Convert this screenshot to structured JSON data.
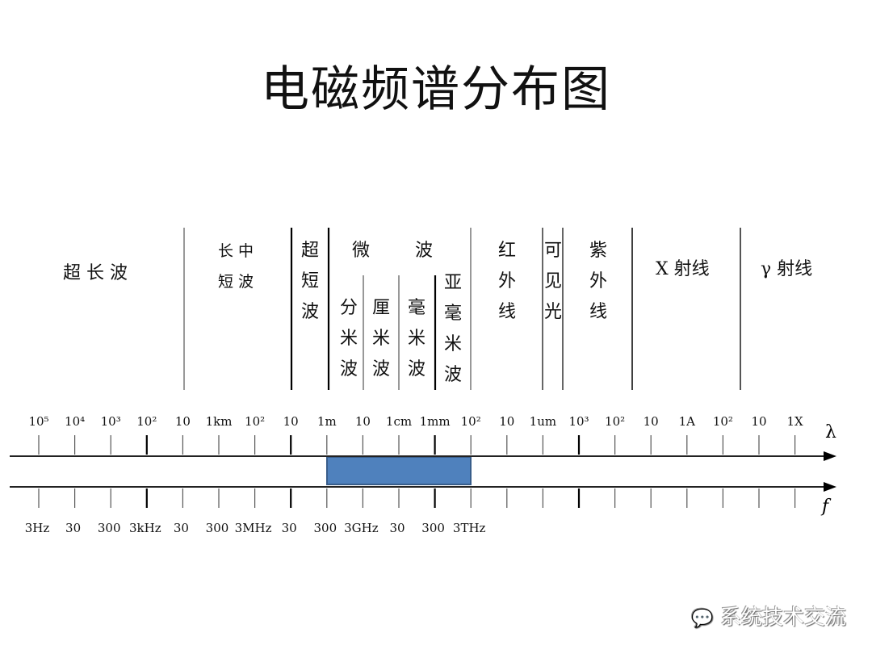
{
  "title": "电磁频谱分布图",
  "bands": [
    {
      "label": "超 长 波"
    },
    {
      "label": "长 中\n短 波"
    },
    {
      "label": "超短波"
    },
    {
      "label": "微        波"
    },
    {
      "label": "分米波"
    },
    {
      "label": "厘米波"
    },
    {
      "label": "毫米波"
    },
    {
      "label": "亚毫米波"
    },
    {
      "label": "红外线"
    },
    {
      "label": "可见光"
    },
    {
      "label": "紫外线"
    },
    {
      "label": "X 射线"
    },
    {
      "label": "γ 射线"
    }
  ],
  "wavelength_axis": {
    "symbol": "λ",
    "ticks": [
      "10⁵",
      "10⁴",
      "10³",
      "10²",
      "10",
      "1km",
      "10²",
      "10",
      "1m",
      "10",
      "1cm",
      "1mm",
      "10²",
      "10",
      "1um",
      "10³",
      "10²",
      "10",
      "1A",
      "10²",
      "10",
      "1X"
    ]
  },
  "frequency_axis": {
    "symbol": "f",
    "ticks": [
      "3Hz",
      "30",
      "300",
      "3kHz",
      "30",
      "300",
      "3MHz",
      "30",
      "300",
      "3GHz",
      "30",
      "300",
      "3THz"
    ]
  },
  "highlight": {
    "from": "1m",
    "to": "10²",
    "color": "#4f81bd"
  },
  "watermark": "系统技术交流"
}
